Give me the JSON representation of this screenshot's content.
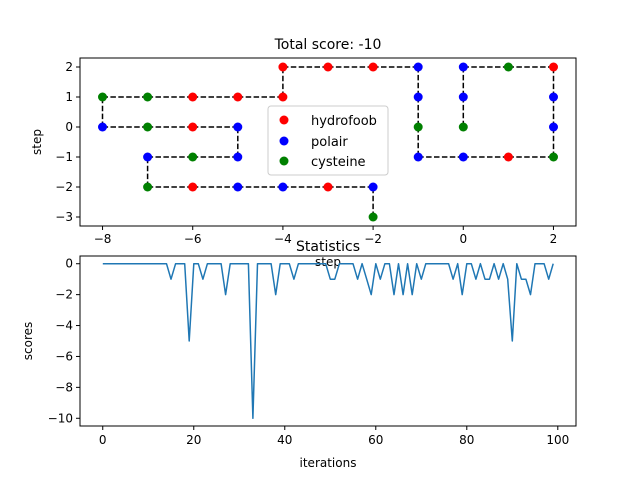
{
  "chart_data": [
    {
      "type": "line",
      "title": "Total score: -10",
      "xlabel": "step",
      "ylabel": "step",
      "xlim": [
        -8.5,
        2.5
      ],
      "ylim": [
        -3.3,
        2.3
      ],
      "xticks": [
        -8,
        -6,
        -4,
        -2,
        0,
        2
      ],
      "yticks": [
        -3,
        -2,
        -1,
        0,
        1,
        2
      ],
      "xtick_labels": [
        "−8",
        "−6",
        "−4",
        "−2",
        "0",
        "2"
      ],
      "ytick_labels": [
        "−3",
        "−2",
        "−1",
        "0",
        "1",
        "2"
      ],
      "path": {
        "style": "black dashed",
        "x": [
          -2,
          -2,
          -3,
          -4,
          -5,
          -6,
          -7,
          -7,
          -6,
          -5,
          -5,
          -6,
          -7,
          -8,
          -8,
          -7,
          -6,
          -5,
          -4,
          -4,
          -3,
          -2,
          -1,
          -1,
          -1,
          -1,
          0,
          1,
          2,
          2,
          2,
          2,
          1,
          0,
          0,
          0
        ],
        "y": [
          -3,
          -2,
          -2,
          -2,
          -2,
          -2,
          -2,
          -1,
          -1,
          -1,
          0,
          0,
          0,
          0,
          1,
          1,
          1,
          1,
          1,
          2,
          2,
          2,
          2,
          1,
          0,
          -1,
          -1,
          -1,
          -1,
          0,
          1,
          2,
          2,
          2,
          1,
          0
        ]
      },
      "series": [
        {
          "name": "hydrofoob",
          "color": "#ff0000",
          "points": [
            [
              -3,
              -2
            ],
            [
              -6,
              -2
            ],
            [
              -6,
              0
            ],
            [
              -6,
              1
            ],
            [
              -5,
              1
            ],
            [
              -4,
              1
            ],
            [
              -4,
              2
            ],
            [
              -3,
              2
            ],
            [
              -2,
              2
            ],
            [
              1,
              -1
            ],
            [
              2,
              2
            ]
          ]
        },
        {
          "name": "polair",
          "color": "#0000ff",
          "points": [
            [
              -2,
              -2
            ],
            [
              -4,
              -2
            ],
            [
              -5,
              -2
            ],
            [
              -7,
              -1
            ],
            [
              -5,
              -1
            ],
            [
              -5,
              0
            ],
            [
              -8,
              0
            ],
            [
              -1,
              2
            ],
            [
              -1,
              1
            ],
            [
              -1,
              -1
            ],
            [
              0,
              -1
            ],
            [
              2,
              0
            ],
            [
              2,
              1
            ],
            [
              0,
              2
            ],
            [
              0,
              1
            ]
          ]
        },
        {
          "name": "cysteine",
          "color": "#008000",
          "points": [
            [
              -2,
              -3
            ],
            [
              -7,
              -2
            ],
            [
              -6,
              -1
            ],
            [
              -7,
              0
            ],
            [
              -8,
              1
            ],
            [
              -7,
              1
            ],
            [
              -1,
              0
            ],
            [
              2,
              -1
            ],
            [
              1,
              2
            ],
            [
              0,
              0
            ]
          ]
        }
      ],
      "legend": {
        "placement": "center",
        "entries": [
          "hydrofoob",
          "polair",
          "cysteine"
        ]
      }
    },
    {
      "type": "line",
      "title": "Statistics",
      "xlabel": "iterations",
      "ylabel": "scores",
      "xlim": [
        -5,
        104
      ],
      "ylim": [
        -10.5,
        0.5
      ],
      "xticks": [
        0,
        20,
        40,
        60,
        80,
        100
      ],
      "yticks": [
        0,
        -2,
        -4,
        -6,
        -8,
        -10
      ],
      "xtick_labels": [
        "0",
        "20",
        "40",
        "60",
        "80",
        "100"
      ],
      "ytick_labels": [
        "0",
        "−2",
        "−4",
        "−6",
        "−8",
        "−10"
      ],
      "series": [
        {
          "color": "#1f77b4",
          "x": [
            0,
            1,
            2,
            3,
            4,
            5,
            6,
            7,
            8,
            9,
            10,
            11,
            12,
            13,
            14,
            15,
            16,
            17,
            18,
            19,
            20,
            21,
            22,
            23,
            24,
            25,
            26,
            27,
            28,
            29,
            30,
            31,
            32,
            33,
            34,
            35,
            36,
            37,
            38,
            39,
            40,
            41,
            42,
            43,
            44,
            45,
            46,
            47,
            48,
            49,
            50,
            51,
            52,
            53,
            54,
            55,
            56,
            57,
            58,
            59,
            60,
            61,
            62,
            63,
            64,
            65,
            66,
            67,
            68,
            69,
            70,
            71,
            72,
            73,
            74,
            75,
            76,
            77,
            78,
            79,
            80,
            81,
            82,
            83,
            84,
            85,
            86,
            87,
            88,
            89,
            90,
            91,
            92,
            93,
            94,
            95,
            96,
            97,
            98,
            99
          ],
          "y": [
            0,
            0,
            0,
            0,
            0,
            0,
            0,
            0,
            0,
            0,
            0,
            0,
            0,
            0,
            0,
            -1,
            0,
            0,
            0,
            -5,
            0,
            0,
            -1,
            0,
            0,
            0,
            0,
            -2,
            0,
            0,
            0,
            0,
            0,
            -10,
            0,
            0,
            0,
            0,
            -2,
            0,
            0,
            0,
            -1,
            0,
            0,
            0,
            0,
            0,
            0,
            0,
            -1,
            -1,
            0,
            0,
            0,
            0,
            -1,
            0,
            -1,
            -2,
            0,
            -1,
            0,
            0,
            -2,
            0,
            -2,
            0,
            -2,
            0,
            -1,
            0,
            0,
            0,
            0,
            0,
            0,
            -1,
            0,
            -2,
            0,
            0,
            -1,
            0,
            -1,
            -1,
            0,
            -1,
            0,
            -1,
            -5,
            0,
            -1,
            -1,
            -2,
            0,
            0,
            0,
            -1,
            0
          ]
        }
      ]
    }
  ]
}
